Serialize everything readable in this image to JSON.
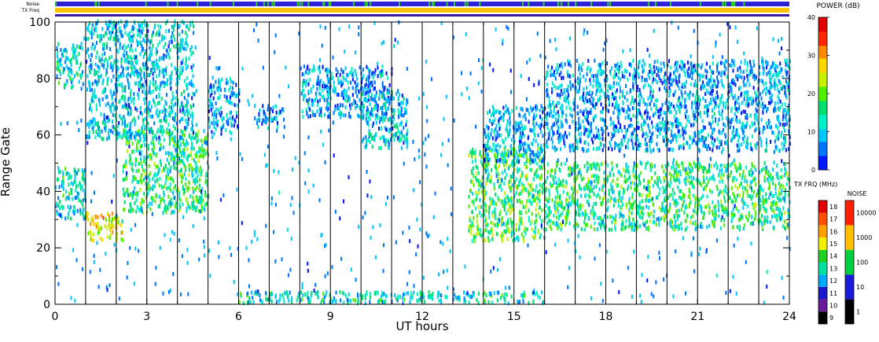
{
  "chart_data": {
    "type": "heatmap",
    "title": "",
    "xlabel": "UT hours",
    "ylabel": "Range Gate",
    "xlim": [
      0,
      24
    ],
    "ylim": [
      0,
      100
    ],
    "x_ticks": [
      "0",
      "3",
      "6",
      "9",
      "12",
      "15",
      "18",
      "21",
      "24"
    ],
    "y_ticks": [
      "0",
      "20",
      "40",
      "60",
      "80",
      "100"
    ],
    "vertical_markers_ut": [
      1,
      2,
      3,
      4,
      5,
      6,
      7,
      8,
      9,
      10,
      11,
      12,
      13,
      14,
      15,
      16,
      17,
      18,
      19,
      20,
      21,
      22,
      23
    ],
    "top_strips": {
      "noise_label": "Noise",
      "txfreq_label": "TX Freq",
      "noise_color": "#2d22d8",
      "txfreq_color": "#ffc400"
    },
    "power_scale": {
      "label": "POWER (dB)",
      "ticks": [
        "0",
        "10",
        "20",
        "30",
        "40"
      ],
      "range": [
        0,
        40
      ],
      "colors": [
        "#0018ff",
        "#0077ff",
        "#00c8ff",
        "#00f0c8",
        "#00e070",
        "#50f000",
        "#c8f000",
        "#ffd800",
        "#ff8c00",
        "#ff2800",
        "#e00000"
      ]
    },
    "txfreq_scale": {
      "label": "TX FRQ (MHz)",
      "ticks": [
        "9",
        "10",
        "11",
        "12",
        "13",
        "14",
        "15",
        "16",
        "17",
        "18"
      ],
      "colors": [
        "#000000",
        "#6a1b9a",
        "#1a1acc",
        "#00aaff",
        "#00e0a0",
        "#20d020",
        "#f0f000",
        "#ffa000",
        "#ff5000",
        "#e00000"
      ]
    },
    "noise_scale": {
      "label": "NOISE",
      "ticks": [
        "1",
        "10",
        "100",
        "1000",
        "10000"
      ],
      "colors": [
        "#000000",
        "#1a1adc",
        "#00d040",
        "#ffc000",
        "#ff2000"
      ]
    },
    "echo_bands": [
      {
        "t": [
          0,
          1
        ],
        "gates": [
          30,
          48
        ],
        "power": 12
      },
      {
        "t": [
          1,
          2.2
        ],
        "gates": [
          22,
          32
        ],
        "power": 26
      },
      {
        "t": [
          2.2,
          5
        ],
        "gates": [
          32,
          62
        ],
        "power": 16
      },
      {
        "t": [
          0,
          0.9
        ],
        "gates": [
          76,
          92
        ],
        "power": 12
      },
      {
        "t": [
          1,
          4.5
        ],
        "gates": [
          58,
          100
        ],
        "power": 10
      },
      {
        "t": [
          5,
          6
        ],
        "gates": [
          60,
          80
        ],
        "power": 8
      },
      {
        "t": [
          6.5,
          7.5
        ],
        "gates": [
          62,
          70
        ],
        "power": 8
      },
      {
        "t": [
          8,
          11
        ],
        "gates": [
          66,
          84
        ],
        "power": 8
      },
      {
        "t": [
          10,
          11.5
        ],
        "gates": [
          55,
          75
        ],
        "power": 10
      },
      {
        "t": [
          13.5,
          16
        ],
        "gates": [
          22,
          55
        ],
        "power": 18
      },
      {
        "t": [
          14,
          16
        ],
        "gates": [
          50,
          70
        ],
        "power": 8
      },
      {
        "t": [
          16,
          24
        ],
        "gates": [
          26,
          50
        ],
        "power": 16
      },
      {
        "t": [
          16,
          24
        ],
        "gates": [
          54,
          86
        ],
        "power": 8
      },
      {
        "t": [
          6,
          16
        ],
        "gates": [
          0,
          4
        ],
        "power": 12
      }
    ]
  }
}
